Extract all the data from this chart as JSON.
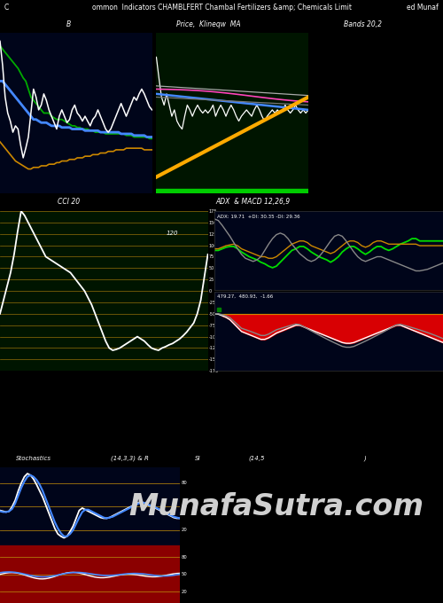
{
  "title_text": "ommon  Indicators CHAMBLFERT Chambal Fertilizers &amp; Chemicals Limit",
  "title_left": "C",
  "title_right": "ed Munaf",
  "bg_color": "#000000",
  "panel_bg_dark_blue": "#00051a",
  "panel_bg_dark_green": "#001500",
  "panel_bg_adx": "#00051a",
  "label_B": "B",
  "label_price_ma": "Price,  Klineqw  MA",
  "label_bands": "Bands 20,2",
  "label_cci": "CCI 20",
  "label_adx_macd": "ADX  & MACD 12,26,9",
  "label_adx_vals": "ADX: 19.71  +DI: 30.35 -DI: 29.36",
  "label_macd_vals": "479.27,  480.93,  -1.66",
  "label_stoch": "Stochastics",
  "label_stoch_params": "(14,3,3) & R",
  "label_si": "SI",
  "label_si_params": "(14,5",
  "label_si_end": ")",
  "watermark": "MunafaSutra.com",
  "watermark_color": "#d0d0d0",
  "watermark_fontsize": 24,
  "n": 60,
  "grid_color_gold": "#b8860b"
}
